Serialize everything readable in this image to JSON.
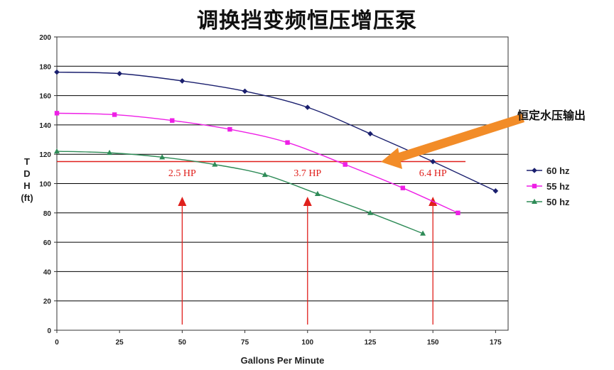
{
  "chart_data": {
    "type": "line",
    "title": "调换挡变频恒压增压泵",
    "xlabel": "Gallons Per Minute",
    "ylabel": [
      "T",
      "D",
      "H",
      "(ft)"
    ],
    "xlim": [
      0,
      180
    ],
    "ylim": [
      0,
      200
    ],
    "x_ticks": [
      0,
      25,
      50,
      75,
      100,
      125,
      150,
      175
    ],
    "y_ticks": [
      0,
      20,
      40,
      60,
      80,
      100,
      120,
      140,
      160,
      180,
      200
    ],
    "grid": "horizontal",
    "legend_position": "right",
    "series": [
      {
        "name": "60 hz",
        "color": "#1a1f6e",
        "marker": "diamond",
        "x": [
          0,
          25,
          50,
          75,
          100,
          125,
          150,
          175
        ],
        "y": [
          176,
          175,
          170,
          163,
          152,
          134,
          115,
          95
        ]
      },
      {
        "name": "55 hz",
        "color": "#ee1fe6",
        "marker": "square",
        "x": [
          0,
          23,
          46,
          69,
          92,
          115,
          138,
          160
        ],
        "y": [
          148,
          147,
          143,
          137,
          128,
          113,
          97,
          80
        ]
      },
      {
        "name": "50 hz",
        "color": "#2e8b57",
        "marker": "triangle",
        "x": [
          0,
          21,
          42,
          63,
          83,
          104,
          125,
          146
        ],
        "y": [
          122,
          121,
          118,
          113,
          106,
          93,
          80,
          66
        ]
      }
    ],
    "constant_pressure_line": {
      "y": 115,
      "x_start": 0,
      "x_end": 163,
      "color": "#e0201c"
    },
    "hp_markers": [
      {
        "label": "2.5 HP",
        "x": 50
      },
      {
        "label": "3.7 HP",
        "x": 100
      },
      {
        "label": "6.4 HP",
        "x": 150
      }
    ],
    "callout": {
      "text": "恒定水压输出",
      "color": "#f28c28"
    }
  }
}
